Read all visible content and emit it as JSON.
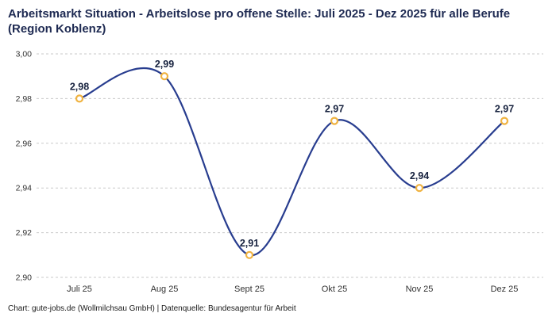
{
  "chart_data": {
    "type": "line",
    "title": "Arbeitsmarkt Situation - Arbeitslose pro offene Stelle: Juli 2025 - Dez 2025 für alle Berufe (Region Koblenz)",
    "categories": [
      "Juli 25",
      "Aug 25",
      "Sept 25",
      "Okt 25",
      "Nov 25",
      "Dez 25"
    ],
    "values": [
      2.98,
      2.99,
      2.91,
      2.97,
      2.94,
      2.97
    ],
    "value_labels": [
      "2,98",
      "2,99",
      "2,91",
      "2,97",
      "2,94",
      "2,97"
    ],
    "ylim": [
      2.9,
      3.0
    ],
    "ytick_step": 0.02,
    "ytick_labels": [
      "2,90",
      "2,92",
      "2,94",
      "2,96",
      "2,98",
      "3,00"
    ],
    "xlabel": "",
    "ylabel": "",
    "grid": "horizontal-dashed",
    "legend_position": "none",
    "curve": "smooth",
    "line_color": "#283d8f",
    "marker_color": "#f0b341",
    "label_color": "#16213e",
    "axis_text_color": "#333333",
    "grid_color": "#c9c9c9",
    "title_color": "#1e2a52"
  },
  "footer": {
    "caption": "Chart: gute-jobs.de (Wollmilchsau GmbH) | Datenquelle: Bundesagentur für Arbeit"
  }
}
